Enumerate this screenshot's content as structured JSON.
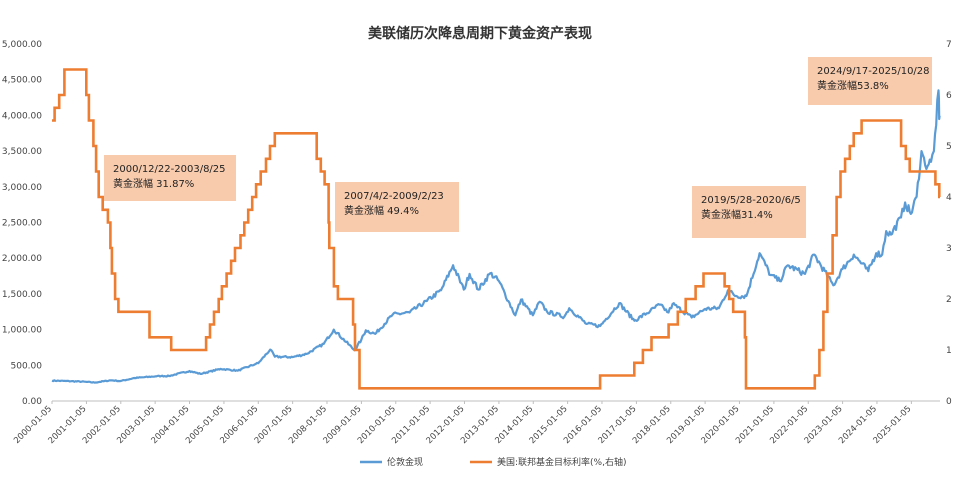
{
  "chart_data": {
    "type": "line",
    "title": "美联储历次降息周期下黄金资产表现",
    "left_axis": {
      "ylim": [
        0,
        5000
      ],
      "tick_values": [
        0,
        500,
        1000,
        1500,
        2000,
        2500,
        3000,
        3500,
        4000,
        4500,
        5000
      ],
      "tick_labels": [
        "0.00",
        "500.00",
        "1,000.00",
        "1,500.00",
        "2,000.00",
        "2,500.00",
        "3,000.00",
        "3,500.00",
        "4,000.00",
        "4,500.00",
        "5,000.00"
      ]
    },
    "right_axis": {
      "ylim": [
        0,
        7
      ],
      "tick_values": [
        0,
        1,
        2,
        3,
        4,
        5,
        6,
        7
      ],
      "tick_labels": [
        "0",
        "1",
        "2",
        "3",
        "4",
        "5",
        "6",
        "7"
      ]
    },
    "x_axis": {
      "range": [
        "2000-01-05",
        "2025-11-05"
      ],
      "tick_labels": [
        "2000-01-05",
        "2001-01-05",
        "2002-01-05",
        "2003-01-05",
        "2004-01-05",
        "2005-01-05",
        "2006-01-05",
        "2007-01-05",
        "2008-01-05",
        "2009-01-05",
        "2010-01-05",
        "2011-01-05",
        "2012-01-05",
        "2013-01-05",
        "2014-01-05",
        "2015-01-05",
        "2016-01-05",
        "2017-01-05",
        "2018-01-05",
        "2019-01-05",
        "2020-01-05",
        "2021-01-05",
        "2022-01-05",
        "2023-01-05",
        "2024-01-05",
        "2025-01-05"
      ]
    },
    "grid": false,
    "legend_position": "bottom",
    "series": [
      {
        "name": "伦敦金现",
        "axis": "left",
        "color": "#5b9bd5",
        "points": [
          [
            "2000-01-05",
            285
          ],
          [
            "2000-06-01",
            280
          ],
          [
            "2001-01-05",
            268
          ],
          [
            "2001-04-01",
            258
          ],
          [
            "2001-09-20",
            290
          ],
          [
            "2002-01-05",
            280
          ],
          [
            "2002-06-01",
            322
          ],
          [
            "2003-01-05",
            345
          ],
          [
            "2003-03-10",
            350
          ],
          [
            "2003-06-01",
            350
          ],
          [
            "2004-01-05",
            420
          ],
          [
            "2004-05-01",
            380
          ],
          [
            "2004-12-01",
            450
          ],
          [
            "2005-06-01",
            425
          ],
          [
            "2005-12-10",
            520
          ],
          [
            "2006-01-05",
            530
          ],
          [
            "2006-05-12",
            720
          ],
          [
            "2006-07-01",
            620
          ],
          [
            "2007-01-05",
            615
          ],
          [
            "2007-06-01",
            660
          ],
          [
            "2007-12-01",
            800
          ],
          [
            "2008-03-17",
            1000
          ],
          [
            "2008-10-24",
            710
          ],
          [
            "2009-01-05",
            860
          ],
          [
            "2009-02-20",
            990
          ],
          [
            "2009-06-01",
            940
          ],
          [
            "2009-12-03",
            1210
          ],
          [
            "2010-06-01",
            1240
          ],
          [
            "2010-12-01",
            1400
          ],
          [
            "2011-05-01",
            1550
          ],
          [
            "2011-09-06",
            1900
          ],
          [
            "2011-12-29",
            1560
          ],
          [
            "2012-02-28",
            1780
          ],
          [
            "2012-06-01",
            1560
          ],
          [
            "2012-10-05",
            1790
          ],
          [
            "2013-01-05",
            1680
          ],
          [
            "2013-04-15",
            1400
          ],
          [
            "2013-06-28",
            1200
          ],
          [
            "2013-08-28",
            1420
          ],
          [
            "2013-12-31",
            1200
          ],
          [
            "2014-03-15",
            1390
          ],
          [
            "2014-06-01",
            1250
          ],
          [
            "2014-12-01",
            1180
          ],
          [
            "2015-01-22",
            1300
          ],
          [
            "2015-07-24",
            1080
          ],
          [
            "2015-12-17",
            1050
          ],
          [
            "2016-07-06",
            1370
          ],
          [
            "2016-12-15",
            1125
          ],
          [
            "2017-06-01",
            1260
          ],
          [
            "2017-09-08",
            1350
          ],
          [
            "2017-12-12",
            1240
          ],
          [
            "2018-01-25",
            1360
          ],
          [
            "2018-08-16",
            1170
          ],
          [
            "2019-01-05",
            1290
          ],
          [
            "2019-06-01",
            1300
          ],
          [
            "2019-09-04",
            1550
          ],
          [
            "2019-12-01",
            1470
          ],
          [
            "2020-03-19",
            1470
          ],
          [
            "2020-08-06",
            2070
          ],
          [
            "2020-11-30",
            1765
          ],
          [
            "2021-03-08",
            1680
          ],
          [
            "2021-06-01",
            1900
          ],
          [
            "2021-12-01",
            1780
          ],
          [
            "2022-03-08",
            2050
          ],
          [
            "2022-09-28",
            1620
          ],
          [
            "2023-01-05",
            1850
          ],
          [
            "2023-05-04",
            2050
          ],
          [
            "2023-10-05",
            1820
          ],
          [
            "2023-12-28",
            2070
          ],
          [
            "2024-03-01",
            2050
          ],
          [
            "2024-04-12",
            2380
          ],
          [
            "2024-06-01",
            2330
          ],
          [
            "2024-09-17",
            2570
          ],
          [
            "2024-10-30",
            2780
          ],
          [
            "2024-12-30",
            2620
          ],
          [
            "2025-03-01",
            2860
          ],
          [
            "2025-04-22",
            3500
          ],
          [
            "2025-06-01",
            3300
          ],
          [
            "2025-08-01",
            3350
          ],
          [
            "2025-09-01",
            3500
          ],
          [
            "2025-10-20",
            4350
          ],
          [
            "2025-10-28",
            3950
          ],
          [
            "2025-11-05",
            4000
          ]
        ]
      },
      {
        "name": "美国:联邦基金目标利率(%,右轴)",
        "axis": "right",
        "color": "#ed7d31",
        "step_after": true,
        "points": [
          [
            "2000-01-05",
            5.5
          ],
          [
            "2000-02-02",
            5.75
          ],
          [
            "2000-03-21",
            6.0
          ],
          [
            "2000-05-16",
            6.5
          ],
          [
            "2001-01-03",
            6.0
          ],
          [
            "2001-01-31",
            5.5
          ],
          [
            "2001-03-20",
            5.0
          ],
          [
            "2001-04-18",
            4.5
          ],
          [
            "2001-05-15",
            4.0
          ],
          [
            "2001-06-27",
            3.75
          ],
          [
            "2001-08-21",
            3.5
          ],
          [
            "2001-09-17",
            3.0
          ],
          [
            "2001-10-02",
            2.5
          ],
          [
            "2001-11-06",
            2.0
          ],
          [
            "2001-12-11",
            1.75
          ],
          [
            "2002-11-06",
            1.25
          ],
          [
            "2003-06-25",
            1.0
          ],
          [
            "2004-06-30",
            1.25
          ],
          [
            "2004-08-10",
            1.5
          ],
          [
            "2004-09-21",
            1.75
          ],
          [
            "2004-11-10",
            2.0
          ],
          [
            "2004-12-14",
            2.25
          ],
          [
            "2005-02-02",
            2.5
          ],
          [
            "2005-03-22",
            2.75
          ],
          [
            "2005-05-03",
            3.0
          ],
          [
            "2005-06-30",
            3.25
          ],
          [
            "2005-08-09",
            3.5
          ],
          [
            "2005-09-20",
            3.75
          ],
          [
            "2005-11-01",
            4.0
          ],
          [
            "2005-12-13",
            4.25
          ],
          [
            "2006-01-31",
            4.5
          ],
          [
            "2006-03-28",
            4.75
          ],
          [
            "2006-05-10",
            5.0
          ],
          [
            "2006-06-29",
            5.25
          ],
          [
            "2007-09-18",
            4.75
          ],
          [
            "2007-10-31",
            4.5
          ],
          [
            "2007-12-11",
            4.25
          ],
          [
            "2008-01-22",
            3.5
          ],
          [
            "2008-01-30",
            3.0
          ],
          [
            "2008-03-18",
            2.25
          ],
          [
            "2008-04-30",
            2.0
          ],
          [
            "2008-10-08",
            1.5
          ],
          [
            "2008-10-29",
            1.0
          ],
          [
            "2008-12-16",
            0.25
          ],
          [
            "2015-12-16",
            0.5
          ],
          [
            "2016-12-14",
            0.75
          ],
          [
            "2017-03-15",
            1.0
          ],
          [
            "2017-06-14",
            1.25
          ],
          [
            "2017-12-13",
            1.5
          ],
          [
            "2018-03-21",
            1.75
          ],
          [
            "2018-06-13",
            2.0
          ],
          [
            "2018-09-26",
            2.25
          ],
          [
            "2018-12-19",
            2.5
          ],
          [
            "2019-07-31",
            2.25
          ],
          [
            "2019-09-18",
            2.0
          ],
          [
            "2019-10-30",
            1.75
          ],
          [
            "2020-03-03",
            1.25
          ],
          [
            "2020-03-15",
            0.25
          ],
          [
            "2022-03-16",
            0.5
          ],
          [
            "2022-05-04",
            1.0
          ],
          [
            "2022-06-15",
            1.75
          ],
          [
            "2022-07-27",
            2.5
          ],
          [
            "2022-09-21",
            3.25
          ],
          [
            "2022-11-02",
            4.0
          ],
          [
            "2022-12-14",
            4.5
          ],
          [
            "2023-02-01",
            4.75
          ],
          [
            "2023-03-22",
            5.0
          ],
          [
            "2023-05-03",
            5.25
          ],
          [
            "2023-07-26",
            5.5
          ],
          [
            "2024-09-18",
            5.0
          ],
          [
            "2024-11-07",
            4.75
          ],
          [
            "2024-12-18",
            4.5
          ],
          [
            "2025-09-17",
            4.25
          ],
          [
            "2025-10-29",
            4.0
          ],
          [
            "2025-11-05",
            4.0
          ]
        ]
      }
    ],
    "annotations": [
      {
        "lines": [
          "2000/12/22-2003/8/25",
          "黄金涨幅 31.87%"
        ]
      },
      {
        "lines": [
          "2007/4/2-2009/2/23",
          "黄金涨幅 49.4%"
        ]
      },
      {
        "lines": [
          "2019/5/28-2020/6/5",
          "黄金涨幅31.4%"
        ]
      },
      {
        "lines": [
          "2024/9/17-2025/10/28",
          "黄金涨幅53.8%"
        ]
      }
    ],
    "annotation_fill": "#f8cbad"
  }
}
